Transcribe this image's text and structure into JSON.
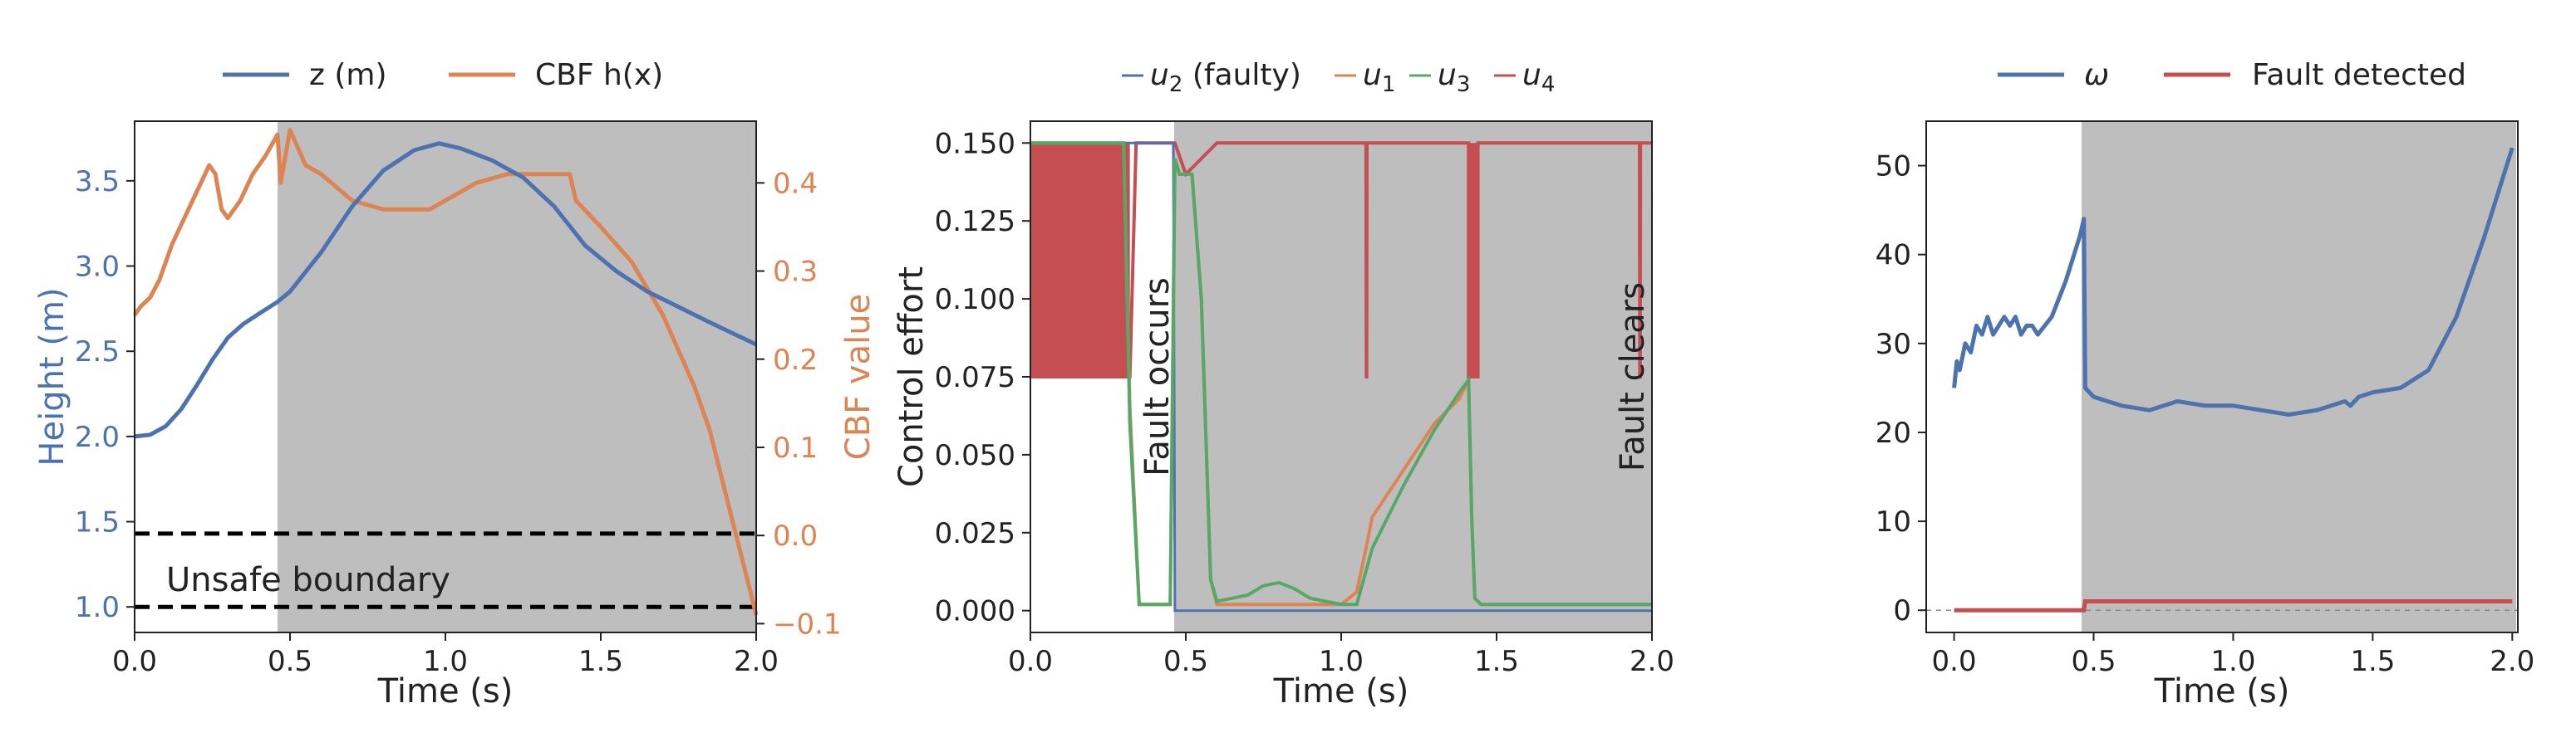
{
  "colors": {
    "blue": "#4c72b0",
    "orange": "#dd8452",
    "green": "#55a868",
    "red": "#c44e52",
    "fault_shade": "#bebebe",
    "text": "#222222"
  },
  "chart_data": [
    {
      "type": "line",
      "title": "",
      "xlabel": "Time (s)",
      "ylabel": "Height (m)",
      "ylabel_right": "CBF value",
      "xlim": [
        0.0,
        2.0
      ],
      "ylim": [
        0.85,
        3.85
      ],
      "ylim_right": [
        -0.11,
        0.47
      ],
      "xticks": [
        "0.0",
        "0.5",
        "1.0",
        "1.5",
        "2.0"
      ],
      "yticks": [
        "1.0",
        "1.5",
        "2.0",
        "2.5",
        "3.0",
        "3.5"
      ],
      "yticks_right": [
        "−0.1",
        "0.0",
        "0.1",
        "0.2",
        "0.3",
        "0.4"
      ],
      "legend_position": "top-center",
      "fault_shading_x": [
        0.46,
        2.0
      ],
      "series": [
        {
          "name": "z (m)",
          "axis": "left",
          "color": "#4c72b0",
          "x": [
            0.0,
            0.05,
            0.1,
            0.15,
            0.2,
            0.25,
            0.3,
            0.35,
            0.4,
            0.46,
            0.5,
            0.6,
            0.7,
            0.8,
            0.9,
            0.98,
            1.05,
            1.15,
            1.25,
            1.35,
            1.45,
            1.55,
            1.65,
            1.75,
            1.85,
            2.0
          ],
          "y": [
            2.0,
            2.01,
            2.06,
            2.16,
            2.3,
            2.45,
            2.58,
            2.66,
            2.72,
            2.79,
            2.85,
            3.08,
            3.35,
            3.56,
            3.68,
            3.72,
            3.69,
            3.62,
            3.52,
            3.35,
            3.12,
            2.97,
            2.85,
            2.76,
            2.67,
            2.54
          ]
        },
        {
          "name": "CBF h(x)",
          "axis": "right",
          "color": "#dd8452",
          "x": [
            0.0,
            0.02,
            0.05,
            0.08,
            0.12,
            0.16,
            0.2,
            0.24,
            0.26,
            0.28,
            0.3,
            0.34,
            0.38,
            0.42,
            0.46,
            0.47,
            0.5,
            0.55,
            0.6,
            0.7,
            0.8,
            0.9,
            0.95,
            1.0,
            1.1,
            1.2,
            1.3,
            1.4,
            1.42,
            1.5,
            1.6,
            1.7,
            1.8,
            1.85,
            1.9,
            1.95,
            2.0
          ],
          "y": [
            0.25,
            0.26,
            0.27,
            0.29,
            0.33,
            0.36,
            0.39,
            0.42,
            0.41,
            0.37,
            0.36,
            0.38,
            0.41,
            0.43,
            0.455,
            0.4,
            0.46,
            0.42,
            0.41,
            0.38,
            0.37,
            0.37,
            0.37,
            0.38,
            0.4,
            0.41,
            0.41,
            0.41,
            0.38,
            0.35,
            0.31,
            0.25,
            0.17,
            0.12,
            0.05,
            -0.02,
            -0.09
          ]
        }
      ],
      "reference_lines": [
        {
          "y": 1.0,
          "style": "dashed",
          "color": "#000000"
        },
        {
          "y": 1.43,
          "style": "dashed",
          "color": "#000000"
        }
      ],
      "annotation": "Unsafe boundary"
    },
    {
      "type": "line",
      "title": "",
      "xlabel": "Time (s)",
      "ylabel": "Control effort",
      "xlim": [
        0.0,
        2.0
      ],
      "ylim": [
        -0.007,
        0.157
      ],
      "xticks": [
        "0.0",
        "0.5",
        "1.0",
        "1.5",
        "2.0"
      ],
      "yticks": [
        "0.000",
        "0.025",
        "0.050",
        "0.075",
        "0.100",
        "0.125",
        "0.150"
      ],
      "legend_position": "top-center",
      "fault_shading_x": [
        0.465,
        2.0
      ],
      "annotations": [
        "Fault occurs",
        "Fault clears"
      ],
      "series": [
        {
          "name": "u",
          "subscript": "2",
          "suffix": " (faulty)",
          "color": "#4c72b0",
          "x": [
            0.0,
            0.46,
            0.465,
            2.0
          ],
          "y": [
            0.15,
            0.15,
            0.0,
            0.0
          ]
        },
        {
          "name": "u",
          "subscript": "1",
          "suffix": "",
          "color": "#dd8452",
          "x": [
            0.0,
            0.3,
            0.32,
            0.35,
            0.45,
            0.465,
            0.48,
            0.52,
            0.55,
            0.58,
            0.6,
            0.8,
            1.0,
            1.05,
            1.08,
            1.1,
            1.2,
            1.3,
            1.38,
            1.41,
            1.42,
            1.43,
            1.45,
            2.0
          ],
          "y": [
            0.15,
            0.15,
            0.065,
            0.002,
            0.002,
            0.145,
            0.14,
            0.14,
            0.1,
            0.01,
            0.002,
            0.002,
            0.002,
            0.006,
            0.02,
            0.03,
            0.045,
            0.06,
            0.068,
            0.074,
            0.03,
            0.004,
            0.002,
            0.002
          ]
        },
        {
          "name": "u",
          "subscript": "3",
          "suffix": "",
          "color": "#55a868",
          "x": [
            0.0,
            0.3,
            0.32,
            0.35,
            0.45,
            0.465,
            0.48,
            0.52,
            0.55,
            0.58,
            0.6,
            0.7,
            0.75,
            0.8,
            0.85,
            0.9,
            1.0,
            1.05,
            1.1,
            1.2,
            1.3,
            1.38,
            1.41,
            1.42,
            1.43,
            1.45,
            2.0
          ],
          "y": [
            0.15,
            0.15,
            0.06,
            0.002,
            0.002,
            0.145,
            0.14,
            0.14,
            0.1,
            0.01,
            0.003,
            0.005,
            0.008,
            0.009,
            0.007,
            0.004,
            0.002,
            0.002,
            0.02,
            0.04,
            0.058,
            0.07,
            0.074,
            0.03,
            0.004,
            0.002,
            0.002
          ]
        },
        {
          "name": "u",
          "subscript": "4",
          "suffix": "",
          "color": "#c44e52",
          "x": [
            0.0,
            0.32,
            0.34,
            0.465,
            0.5,
            0.55,
            0.6,
            1.08,
            1.081,
            1.082,
            1.083,
            1.41,
            1.41,
            1.44,
            1.44,
            1.96,
            1.961,
            1.962,
            1.963,
            2.0
          ],
          "y": [
            0.075,
            0.075,
            0.15,
            0.15,
            0.14,
            0.145,
            0.15,
            0.15,
            0.075,
            0.075,
            0.15,
            0.15,
            0.075,
            0.075,
            0.15,
            0.15,
            0.075,
            0.075,
            0.15,
            0.15
          ]
        }
      ],
      "filled_band_u4": {
        "x": [
          0.0,
          0.32
        ],
        "y": [
          0.075,
          0.15
        ]
      },
      "filled_band_u4_2": {
        "x": [
          1.41,
          1.44
        ],
        "y": [
          0.075,
          0.15
        ]
      }
    },
    {
      "type": "line",
      "title": "",
      "xlabel": "Time (s)",
      "ylabel": "",
      "xlim": [
        -0.1,
        2.02
      ],
      "ylim": [
        -2.5,
        55.0
      ],
      "xticks": [
        "0.0",
        "0.5",
        "1.0",
        "1.5",
        "2.0"
      ],
      "yticks": [
        "0",
        "10",
        "20",
        "30",
        "40",
        "50"
      ],
      "legend_position": "top-center",
      "fault_shading_x": [
        0.47,
        2.0
      ],
      "series": [
        {
          "name": "ω",
          "color": "#4c72b0",
          "x": [
            0.0,
            0.01,
            0.02,
            0.04,
            0.06,
            0.08,
            0.1,
            0.12,
            0.14,
            0.16,
            0.18,
            0.2,
            0.22,
            0.24,
            0.26,
            0.28,
            0.3,
            0.35,
            0.4,
            0.45,
            0.465,
            0.47,
            0.5,
            0.6,
            0.7,
            0.8,
            0.9,
            1.0,
            1.1,
            1.2,
            1.3,
            1.4,
            1.42,
            1.45,
            1.5,
            1.6,
            1.7,
            1.8,
            1.9,
            2.0
          ],
          "y": [
            25,
            28,
            27,
            30,
            29,
            32,
            31,
            33,
            31,
            32,
            33,
            32,
            33,
            31,
            32,
            32,
            31,
            33,
            37,
            42,
            44,
            25,
            24,
            23,
            22.5,
            23.5,
            23,
            23,
            22.5,
            22,
            22.5,
            23.5,
            23,
            24,
            24.5,
            25,
            27,
            33,
            42,
            52
          ]
        },
        {
          "name": "Fault detected",
          "color": "#c44e52",
          "x": [
            0.0,
            0.465,
            0.47,
            2.0
          ],
          "y": [
            0,
            0,
            1,
            1
          ]
        }
      ],
      "reference_lines": [
        {
          "y": 0,
          "style": "dashed-thin",
          "color": "#888888"
        }
      ]
    }
  ]
}
